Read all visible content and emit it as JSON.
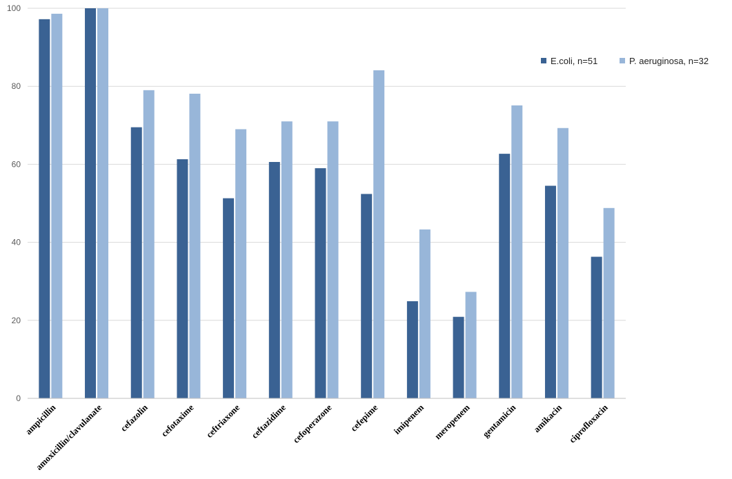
{
  "chart_data": {
    "type": "bar",
    "title": "",
    "xlabel": "",
    "ylabel": "",
    "ylim": [
      0,
      100
    ],
    "yticks": [
      0,
      20,
      40,
      60,
      80,
      100
    ],
    "grid": true,
    "legend_position": "right",
    "categories": [
      "ampicillin",
      "amoxicillin/clavulanate",
      "cefazolin",
      "cefotaxime",
      "ceftriaxone",
      "ceftazidime",
      "cefoperazone",
      "cefepime",
      "imipenem",
      "meropenem",
      "gentamicin",
      "amikacin",
      "ciprofloxacin"
    ],
    "series": [
      {
        "name": "E.coli, n=51",
        "color": "#3a6293",
        "values": [
          97.2,
          100,
          69.5,
          61.3,
          51.3,
          60.6,
          59,
          52.4,
          24.9,
          20.9,
          62.7,
          54.5,
          36.3
        ]
      },
      {
        "name": "P. aeruginosa, n=32",
        "color": "#98b6d9",
        "values": [
          98.6,
          100,
          79,
          78.1,
          69,
          71,
          71,
          84.1,
          43.3,
          27.3,
          75.1,
          69.3,
          48.8
        ]
      }
    ]
  }
}
